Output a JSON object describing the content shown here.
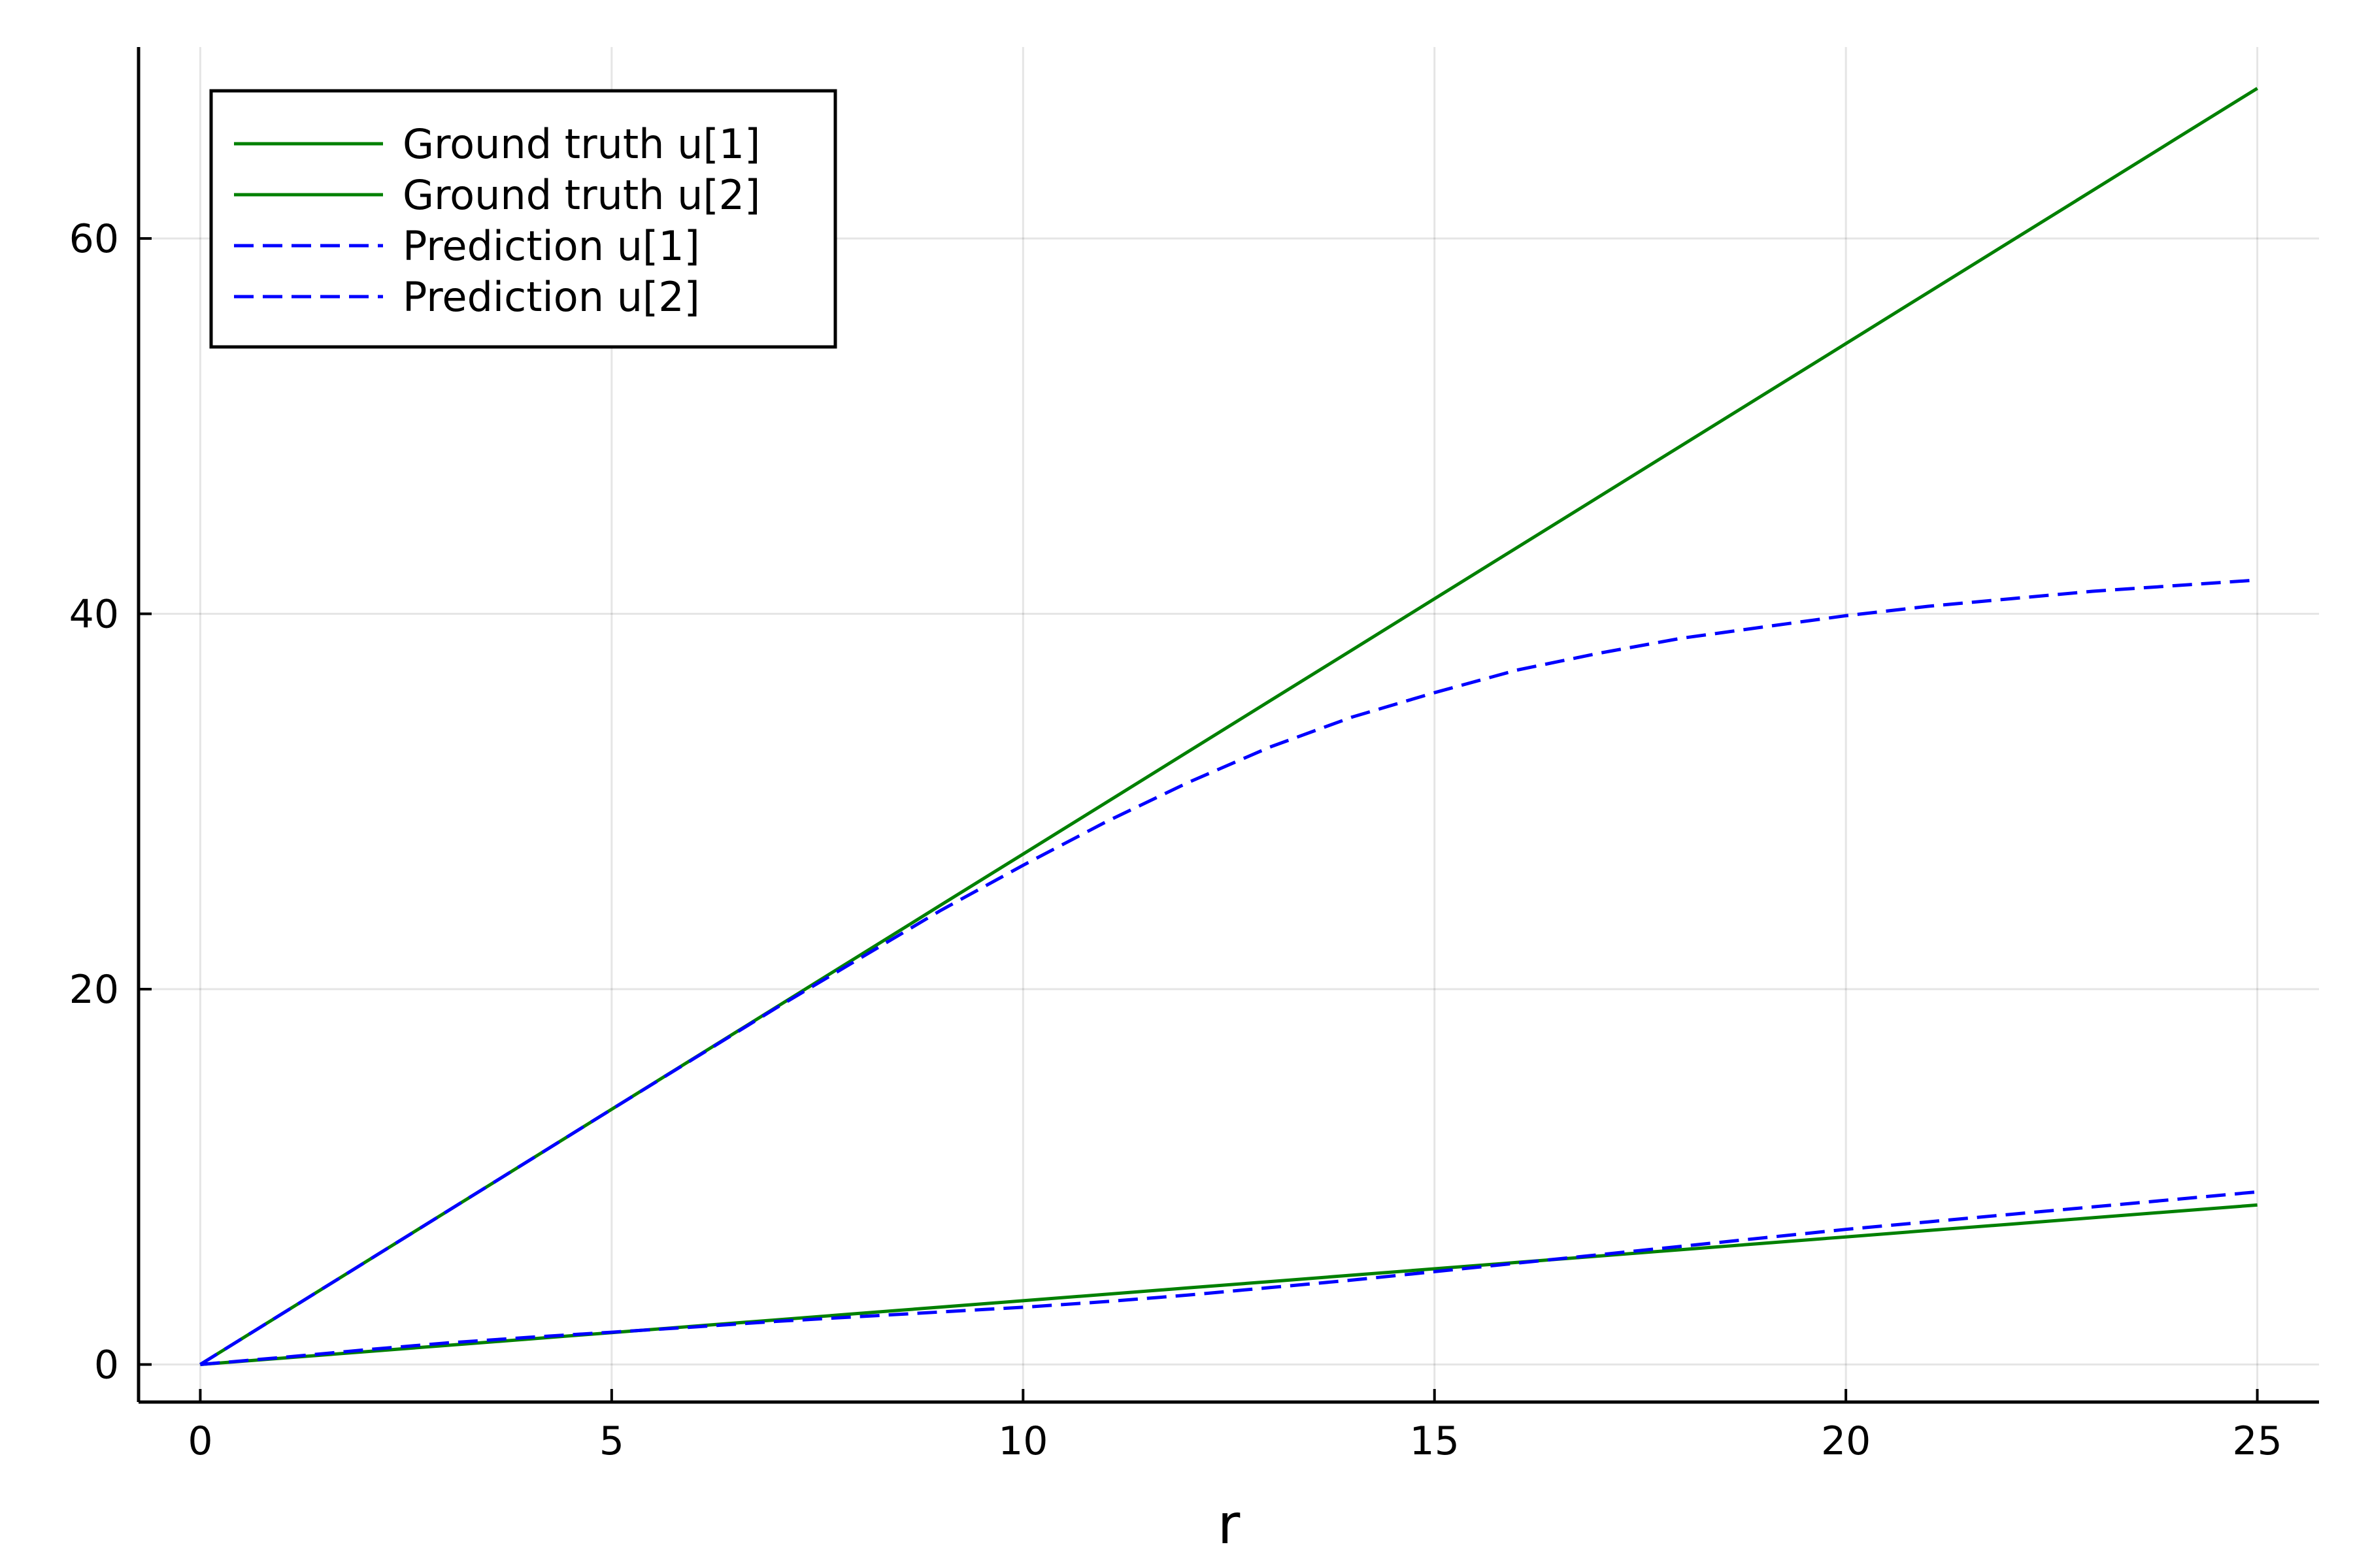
{
  "chart_data": {
    "type": "line",
    "title": "",
    "xlabel": "r",
    "ylabel": "",
    "xlim": [
      -0.75,
      25.75
    ],
    "ylim": [
      -2.0,
      70.2
    ],
    "xticks": [
      0,
      5,
      10,
      15,
      20,
      25
    ],
    "yticks": [
      0,
      20,
      40,
      60
    ],
    "x_tick_labels": [
      "0",
      "5",
      "10",
      "15",
      "20",
      "25"
    ],
    "y_tick_labels": [
      "0",
      "20",
      "40",
      "60"
    ],
    "grid": true,
    "legend_position": "top-left",
    "x": [
      0,
      1,
      2,
      3,
      4,
      5,
      6,
      7,
      8,
      9,
      10,
      11,
      12,
      13,
      14,
      15,
      16,
      17,
      18,
      19,
      20,
      21,
      22,
      23,
      24,
      25
    ],
    "series": [
      {
        "name": "Ground truth u[1]",
        "color": "#008000",
        "dash": "solid",
        "values": [
          0,
          2.72,
          5.44,
          8.16,
          10.88,
          13.6,
          16.32,
          19.04,
          21.76,
          24.48,
          27.2,
          29.92,
          32.64,
          35.36,
          38.08,
          40.8,
          43.52,
          46.24,
          48.96,
          51.68,
          54.4,
          57.12,
          59.84,
          62.56,
          65.28,
          68.0
        ]
      },
      {
        "name": "Ground truth u[2]",
        "color": "#008000",
        "dash": "solid",
        "values": [
          0,
          0.34,
          0.68,
          1.02,
          1.36,
          1.7,
          2.04,
          2.38,
          2.72,
          3.06,
          3.4,
          3.74,
          4.08,
          4.42,
          4.76,
          5.1,
          5.44,
          5.78,
          6.12,
          6.46,
          6.8,
          7.14,
          7.48,
          7.82,
          8.16,
          8.5
        ]
      },
      {
        "name": "Prediction u[1]",
        "color": "#0000ff",
        "dash": "dashed",
        "values": [
          0,
          2.72,
          5.44,
          8.16,
          10.88,
          13.6,
          16.3,
          19.0,
          21.6,
          24.2,
          26.6,
          28.9,
          31.0,
          32.9,
          34.5,
          35.8,
          37.0,
          37.9,
          38.7,
          39.3,
          39.9,
          40.4,
          40.8,
          41.2,
          41.5,
          41.8
        ]
      },
      {
        "name": "Prediction u[2]",
        "color": "#0000ff",
        "dash": "dashed",
        "values": [
          0,
          0.38,
          0.78,
          1.15,
          1.45,
          1.72,
          2.0,
          2.3,
          2.55,
          2.8,
          3.05,
          3.35,
          3.7,
          4.1,
          4.5,
          4.95,
          5.4,
          5.85,
          6.3,
          6.75,
          7.2,
          7.6,
          8.0,
          8.4,
          8.8,
          9.2
        ]
      }
    ]
  }
}
